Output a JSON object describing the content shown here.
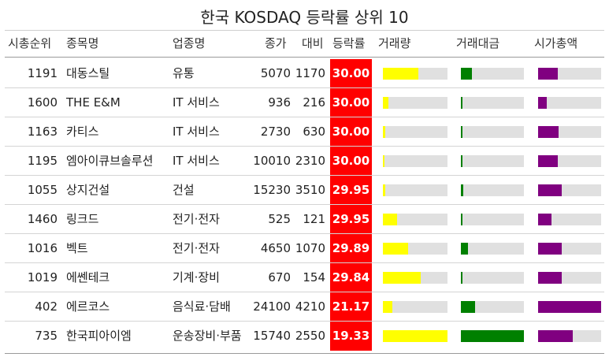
{
  "chart_data": {
    "type": "table",
    "title": "한국 KOSDAQ 등락률 상위 10",
    "columns": [
      "시총순위",
      "종목명",
      "업종명",
      "종가",
      "대비",
      "등락률",
      "거래량",
      "거래대금",
      "시가총액"
    ],
    "bar_colors": {
      "volume": "#ffff00",
      "amount": "#008000",
      "mcap": "#800080",
      "change": "#ff0000"
    },
    "rows": [
      {
        "rank": "1191",
        "name": "대동스틸",
        "sector": "유통",
        "close": "5070",
        "diff": "1170",
        "change": "30.00",
        "volume_frac": 0.55,
        "amount_frac": 0.17,
        "mcap_frac": 0.31
      },
      {
        "rank": "1600",
        "name": "THE E&M",
        "sector": "IT 서비스",
        "close": "936",
        "diff": "216",
        "change": "30.00",
        "volume_frac": 0.09,
        "amount_frac": 0.01,
        "mcap_frac": 0.14
      },
      {
        "rank": "1163",
        "name": "카티스",
        "sector": "IT 서비스",
        "close": "2730",
        "diff": "630",
        "change": "30.00",
        "volume_frac": 0.04,
        "amount_frac": 0.01,
        "mcap_frac": 0.32
      },
      {
        "rank": "1195",
        "name": "엠아이큐브솔루션",
        "sector": "IT 서비스",
        "close": "10010",
        "diff": "2310",
        "change": "30.00",
        "volume_frac": 0.03,
        "amount_frac": 0.01,
        "mcap_frac": 0.31
      },
      {
        "rank": "1055",
        "name": "상지건설",
        "sector": "건설",
        "close": "15230",
        "diff": "3510",
        "change": "29.95",
        "volume_frac": 0.04,
        "amount_frac": 0.04,
        "mcap_frac": 0.37
      },
      {
        "rank": "1460",
        "name": "링크드",
        "sector": "전기·전자",
        "close": "525",
        "diff": "121",
        "change": "29.95",
        "volume_frac": 0.22,
        "amount_frac": 0.01,
        "mcap_frac": 0.21
      },
      {
        "rank": "1016",
        "name": "벡트",
        "sector": "전기·전자",
        "close": "4650",
        "diff": "1070",
        "change": "29.89",
        "volume_frac": 0.39,
        "amount_frac": 0.11,
        "mcap_frac": 0.38
      },
      {
        "rank": "1019",
        "name": "에쎈테크",
        "sector": "기계·장비",
        "close": "670",
        "diff": "154",
        "change": "29.84",
        "volume_frac": 0.59,
        "amount_frac": 0.02,
        "mcap_frac": 0.38
      },
      {
        "rank": "402",
        "name": "에르코스",
        "sector": "음식료·담배",
        "close": "24100",
        "diff": "4210",
        "change": "21.17",
        "volume_frac": 0.15,
        "amount_frac": 0.22,
        "mcap_frac": 1.0
      },
      {
        "rank": "735",
        "name": "한국피아이엠",
        "sector": "운송장비·부품",
        "close": "15740",
        "diff": "2550",
        "change": "19.33",
        "volume_frac": 1.0,
        "amount_frac": 1.0,
        "mcap_frac": 0.55
      }
    ]
  }
}
